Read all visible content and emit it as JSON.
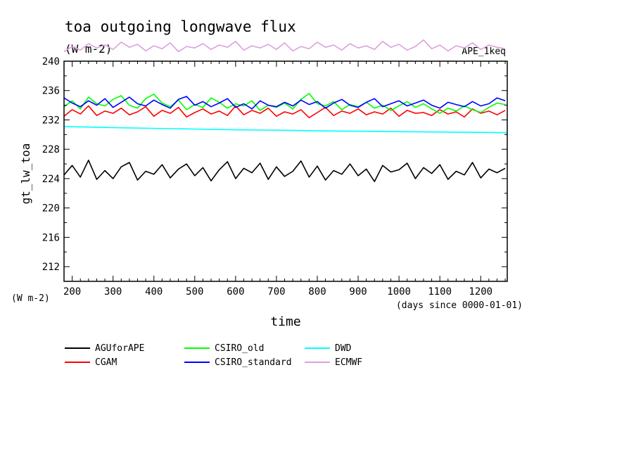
{
  "chart_data": {
    "type": "line",
    "title": "toa outgoing longwave flux",
    "units": "(W m-2)",
    "dataset_label": "APE_1keq",
    "xlabel": "time",
    "x_units": "(days since 0000-01-01)",
    "ylabel": "gt_lw_toa",
    "y_units": "(W m-2)",
    "xlim": [
      180,
      1265
    ],
    "ylim": [
      210,
      240
    ],
    "x_ticks": [
      200,
      300,
      400,
      500,
      600,
      700,
      800,
      900,
      1000,
      1100,
      1200
    ],
    "y_ticks": [
      212,
      216,
      220,
      224,
      228,
      232,
      236,
      240
    ],
    "grid": false,
    "legend_position": "below",
    "series": [
      {
        "name": "AGUforAPE",
        "color": "#000000",
        "x": [
          180,
          200,
          220,
          240,
          260,
          280,
          300,
          320,
          340,
          360,
          380,
          400,
          420,
          440,
          460,
          480,
          500,
          520,
          540,
          560,
          580,
          600,
          620,
          640,
          660,
          680,
          700,
          720,
          740,
          760,
          780,
          800,
          820,
          840,
          860,
          880,
          900,
          920,
          940,
          960,
          980,
          1000,
          1020,
          1040,
          1060,
          1080,
          1100,
          1120,
          1140,
          1160,
          1180,
          1200,
          1220,
          1240,
          1260
        ],
        "y": [
          224.5,
          225.8,
          224.2,
          226.5,
          223.9,
          225.1,
          224.0,
          225.6,
          226.2,
          223.8,
          225.0,
          224.6,
          225.9,
          224.1,
          225.3,
          226.0,
          224.4,
          225.5,
          223.7,
          225.2,
          226.3,
          224.0,
          225.4,
          224.8,
          226.1,
          223.9,
          225.6,
          224.3,
          225.0,
          226.4,
          224.2,
          225.7,
          223.8,
          225.1,
          224.6,
          226.0,
          224.4,
          225.3,
          223.6,
          225.8,
          224.9,
          225.2,
          226.1,
          224.0,
          225.5,
          224.7,
          225.9,
          223.9,
          225.0,
          224.5,
          226.2,
          224.1,
          225.3,
          224.8,
          225.4
        ]
      },
      {
        "name": "CGAM",
        "color": "#ff0000",
        "x": [
          180,
          200,
          220,
          240,
          260,
          280,
          300,
          320,
          340,
          360,
          380,
          400,
          420,
          440,
          460,
          480,
          500,
          520,
          540,
          560,
          580,
          600,
          620,
          640,
          660,
          680,
          700,
          720,
          740,
          760,
          780,
          800,
          820,
          840,
          860,
          880,
          900,
          920,
          940,
          960,
          980,
          1000,
          1020,
          1040,
          1060,
          1080,
          1100,
          1120,
          1140,
          1160,
          1180,
          1200,
          1220,
          1240,
          1260
        ],
        "y": [
          232.5,
          233.4,
          232.8,
          233.9,
          232.6,
          233.2,
          232.9,
          233.6,
          232.7,
          233.1,
          233.8,
          232.5,
          233.3,
          232.9,
          233.7,
          232.4,
          233.0,
          233.5,
          232.8,
          233.2,
          232.6,
          233.9,
          232.7,
          233.3,
          232.9,
          233.6,
          232.5,
          233.1,
          232.8,
          233.4,
          232.3,
          233.0,
          233.7,
          232.6,
          233.2,
          232.9,
          233.5,
          232.7,
          233.1,
          232.8,
          233.6,
          232.5,
          233.3,
          232.9,
          233.0,
          232.6,
          233.4,
          232.8,
          233.1,
          232.4,
          233.5,
          232.9,
          233.2,
          232.7,
          233.3
        ]
      },
      {
        "name": "CSIRO_old",
        "color": "#00ff00",
        "x": [
          180,
          200,
          220,
          240,
          260,
          280,
          300,
          320,
          340,
          360,
          380,
          400,
          420,
          440,
          460,
          480,
          500,
          520,
          540,
          560,
          580,
          600,
          620,
          640,
          660,
          680,
          700,
          720,
          740,
          760,
          780,
          800,
          820,
          840,
          860,
          880,
          900,
          920,
          940,
          960,
          980,
          1000,
          1020,
          1040,
          1060,
          1080,
          1100,
          1120,
          1140,
          1160,
          1180,
          1200,
          1220,
          1240,
          1260
        ],
        "y": [
          233.8,
          234.6,
          233.5,
          235.1,
          234.2,
          233.9,
          234.8,
          235.3,
          234.0,
          233.6,
          234.9,
          235.5,
          234.3,
          233.8,
          234.7,
          233.4,
          234.1,
          233.7,
          235.0,
          234.4,
          233.6,
          234.2,
          233.9,
          234.6,
          233.3,
          234.0,
          233.7,
          234.3,
          233.5,
          234.8,
          235.6,
          234.2,
          233.9,
          234.5,
          233.4,
          234.1,
          233.8,
          234.4,
          233.6,
          234.0,
          233.3,
          233.9,
          234.5,
          233.7,
          234.2,
          233.5,
          232.9,
          233.6,
          233.2,
          233.9,
          233.4,
          233.0,
          233.7,
          234.3,
          234.1
        ]
      },
      {
        "name": "CSIRO_standard",
        "color": "#0000ff",
        "x": [
          180,
          200,
          220,
          240,
          260,
          280,
          300,
          320,
          340,
          360,
          380,
          400,
          420,
          440,
          460,
          480,
          500,
          520,
          540,
          560,
          580,
          600,
          620,
          640,
          660,
          680,
          700,
          720,
          740,
          760,
          780,
          800,
          820,
          840,
          860,
          880,
          900,
          920,
          940,
          960,
          980,
          1000,
          1020,
          1040,
          1060,
          1080,
          1100,
          1120,
          1140,
          1160,
          1180,
          1200,
          1220,
          1240,
          1260
        ],
        "y": [
          235.0,
          234.3,
          233.8,
          234.6,
          234.0,
          234.9,
          233.7,
          234.4,
          235.1,
          234.2,
          233.9,
          234.7,
          234.1,
          233.6,
          234.8,
          235.2,
          234.0,
          234.5,
          233.8,
          234.3,
          234.9,
          233.7,
          234.2,
          233.5,
          234.6,
          234.0,
          233.8,
          234.4,
          233.9,
          234.7,
          234.1,
          234.5,
          233.6,
          234.3,
          234.8,
          234.0,
          233.7,
          234.4,
          234.9,
          233.8,
          234.2,
          234.6,
          233.9,
          234.3,
          234.7,
          234.0,
          233.6,
          234.4,
          234.1,
          233.8,
          234.5,
          233.9,
          234.2,
          235.0,
          234.6
        ]
      },
      {
        "name": "DWD",
        "color": "#00ffff",
        "x": [
          180,
          300,
          400,
          500,
          600,
          700,
          800,
          900,
          1000,
          1100,
          1200,
          1265
        ],
        "y": [
          231.1,
          230.95,
          230.85,
          230.75,
          230.65,
          230.6,
          230.5,
          230.45,
          230.4,
          230.35,
          230.3,
          230.25
        ]
      },
      {
        "name": "ECMWF",
        "color": "#dda0dd",
        "x": [
          180,
          200,
          220,
          240,
          260,
          280,
          300,
          320,
          340,
          360,
          380,
          400,
          420,
          440,
          460,
          480,
          500,
          520,
          540,
          560,
          580,
          600,
          620,
          640,
          660,
          680,
          700,
          720,
          740,
          760,
          780,
          800,
          820,
          840,
          860,
          880,
          900,
          920,
          940,
          960,
          980,
          1000,
          1020,
          1040,
          1060,
          1080,
          1100,
          1120,
          1140,
          1160,
          1180,
          1200,
          1220,
          1240,
          1260
        ],
        "y": [
          241.3,
          242.0,
          241.5,
          242.4,
          241.8,
          242.2,
          241.6,
          242.6,
          241.9,
          242.3,
          241.4,
          242.1,
          241.7,
          242.5,
          241.3,
          242.0,
          241.8,
          242.4,
          241.6,
          242.2,
          241.9,
          242.7,
          241.5,
          242.1,
          241.8,
          242.3,
          241.6,
          242.5,
          241.4,
          242.0,
          241.7,
          242.6,
          241.9,
          242.2,
          241.5,
          242.4,
          241.8,
          242.1,
          241.6,
          242.7,
          241.9,
          242.3,
          241.5,
          242.0,
          242.9,
          241.7,
          242.2,
          241.4,
          242.1,
          241.8,
          242.5,
          241.6,
          242.2,
          241.9,
          241.7
        ]
      }
    ]
  }
}
